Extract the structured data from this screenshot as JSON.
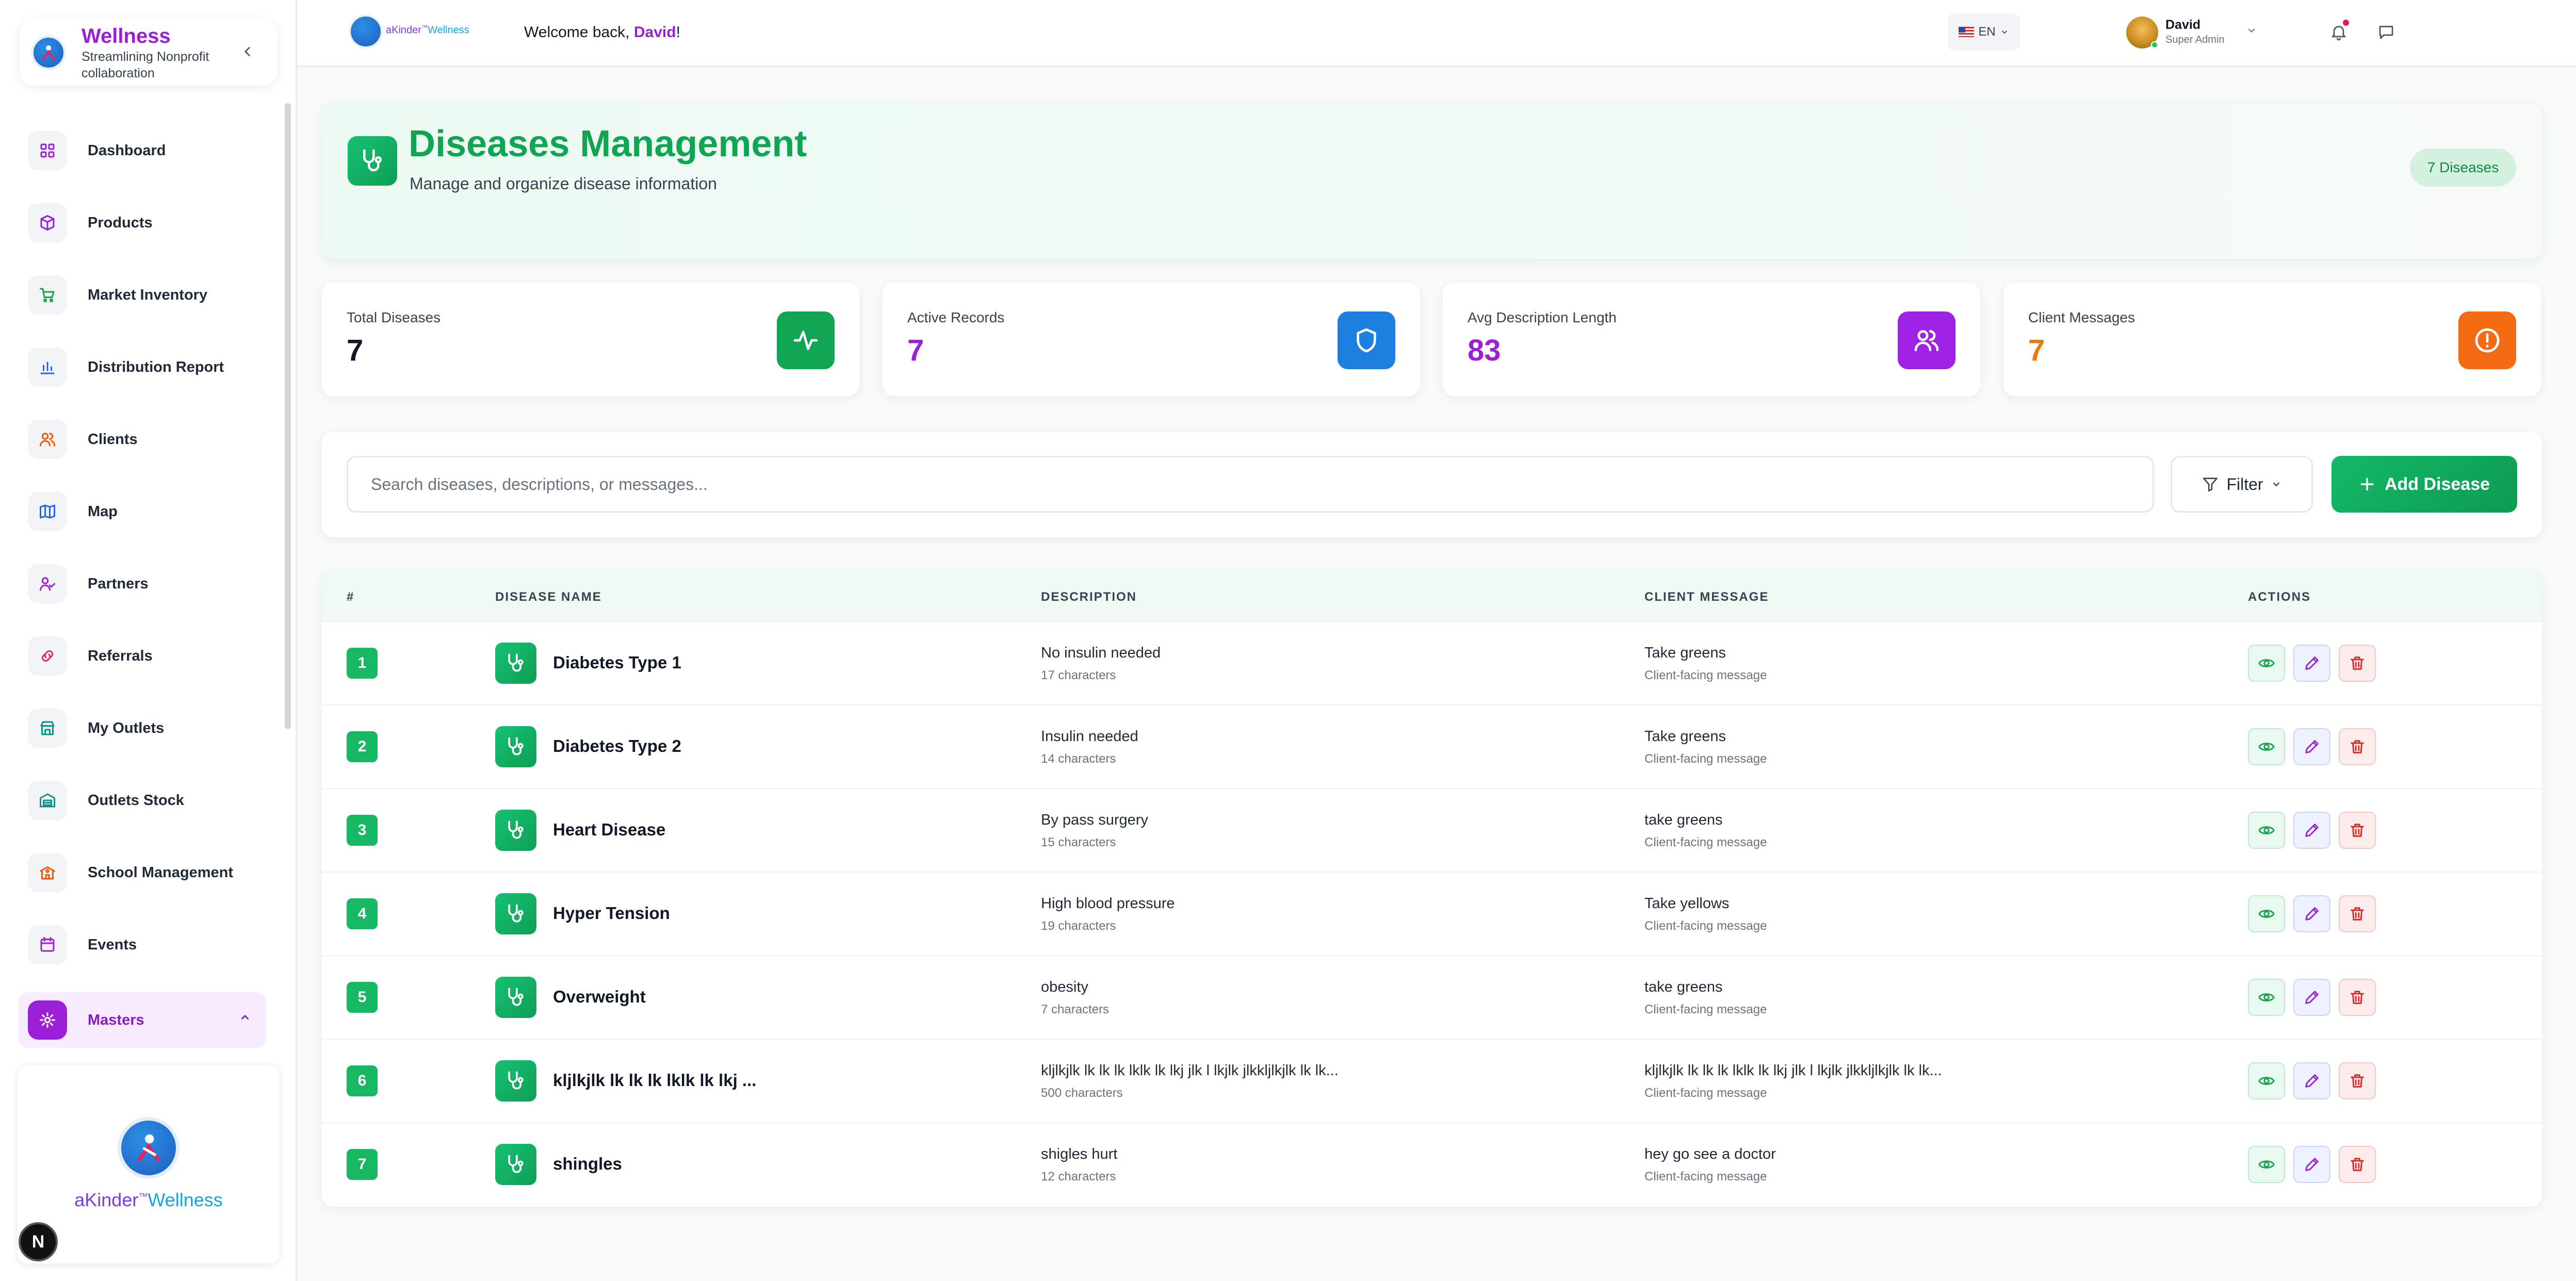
{
  "sidebar": {
    "brand": {
      "title": "Wellness",
      "subtitle": "Streamlining Nonprofit collaboration"
    },
    "items": [
      {
        "label": "Dashboard",
        "icon": "grid-icon",
        "color": "#9b1fd6"
      },
      {
        "label": "Products",
        "icon": "box-icon",
        "color": "#9b1fd6"
      },
      {
        "label": "Market Inventory",
        "icon": "cart-icon",
        "color": "#16a34a"
      },
      {
        "label": "Distribution Report",
        "icon": "bar-chart-icon",
        "color": "#2563eb"
      },
      {
        "label": "Clients",
        "icon": "users-icon",
        "color": "#ea580c"
      },
      {
        "label": "Map",
        "icon": "map-icon",
        "color": "#2563eb"
      },
      {
        "label": "Partners",
        "icon": "user-check-icon",
        "color": "#9b1fd6"
      },
      {
        "label": "Referrals",
        "icon": "link-icon",
        "color": "#db2777"
      },
      {
        "label": "My Outlets",
        "icon": "store-icon",
        "color": "#0d9488"
      },
      {
        "label": "Outlets Stock",
        "icon": "warehouse-icon",
        "color": "#0d9488"
      },
      {
        "label": "School Management",
        "icon": "school-icon",
        "color": "#ea580c"
      },
      {
        "label": "Events",
        "icon": "calendar-icon",
        "color": "#9b1fd6"
      },
      {
        "label": "Masters",
        "icon": "gear-icon",
        "color": "#ffffff",
        "active": true
      }
    ],
    "logo_card": {
      "word_a": "aKinder",
      "tm": "™",
      "word_b": "Wellness"
    },
    "next_badge": "N"
  },
  "topbar": {
    "logo_a": "aKinder",
    "logo_tm": "™",
    "logo_b": "Wellness",
    "welcome_prefix": "Welcome back, ",
    "welcome_name": "David",
    "welcome_suffix": "!",
    "language": "EN",
    "user_name": "David",
    "user_role": "Super Admin"
  },
  "header": {
    "title": "Diseases Management",
    "subtitle": "Manage and organize disease information",
    "count_badge": "7 Diseases"
  },
  "stats": [
    {
      "label": "Total Diseases",
      "value": "7",
      "value_color": "#111827",
      "icon": "activity-icon",
      "icon_bg": "#10a552"
    },
    {
      "label": "Active Records",
      "value": "7",
      "value_color": "#9b1fd6",
      "icon": "shield-icon",
      "icon_bg": "#1d7fe0"
    },
    {
      "label": "Avg Description Length",
      "value": "83",
      "value_color": "#9b1fd6",
      "icon": "users-icon",
      "icon_bg": "#a021e6"
    },
    {
      "label": "Client Messages",
      "value": "7",
      "value_color": "#ea7a0c",
      "icon": "alert-circle-icon",
      "icon_bg": "#f36b12"
    }
  ],
  "search": {
    "placeholder": "Search diseases, descriptions, or messages...",
    "filter_label": "Filter",
    "add_label": "Add Disease"
  },
  "table": {
    "headers": [
      "#",
      "DISEASE NAME",
      "DESCRIPTION",
      "CLIENT MESSAGE",
      "ACTIONS"
    ],
    "rows": [
      {
        "num": "1",
        "name": "Diabetes Type 1",
        "description": "No insulin needed",
        "desc_len": "17 characters",
        "message": "Take greens",
        "message_sub": "Client-facing message"
      },
      {
        "num": "2",
        "name": "Diabetes Type 2",
        "description": "Insulin needed",
        "desc_len": "14 characters",
        "message": "Take greens",
        "message_sub": "Client-facing message"
      },
      {
        "num": "3",
        "name": "Heart Disease",
        "description": "By pass surgery",
        "desc_len": "15 characters",
        "message": "take greens",
        "message_sub": "Client-facing message"
      },
      {
        "num": "4",
        "name": "Hyper Tension",
        "description": "High blood pressure",
        "desc_len": "19 characters",
        "message": "Take yellows",
        "message_sub": "Client-facing message"
      },
      {
        "num": "5",
        "name": "Overweight",
        "description": "obesity",
        "desc_len": "7 characters",
        "message": "take greens",
        "message_sub": "Client-facing message"
      },
      {
        "num": "6",
        "name": "kljlkjlk lk lk lk lklk lk lkj ...",
        "description": "kljlkjlk lk lk lk lklk lk lkj jlk l lkjlk jlkkljlkjlk lk lk...",
        "desc_len": "500 characters",
        "message": "kljlkjlk lk lk lk lklk lk lkj jlk l lkjlk jlkkljlkjlk lk lk...",
        "message_sub": "Client-facing message"
      },
      {
        "num": "7",
        "name": "shingles",
        "description": "shigles hurt",
        "desc_len": "12 characters",
        "message": "hey go see a doctor",
        "message_sub": "Client-facing message"
      }
    ]
  }
}
